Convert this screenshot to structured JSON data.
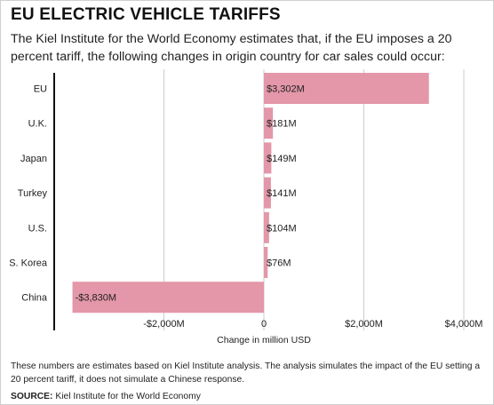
{
  "header": {
    "title": "EU ELECTRIC VEHICLE TARIFFS",
    "subtitle": "The Kiel Institute for the World Economy estimates that, if the EU imposes a 20 percent tariff, the following changes in origin country for car sales could occur:"
  },
  "footer": {
    "note": "These numbers are estimates based on Kiel Institute analysis. The analysis simulates the impact of the EU setting a 20 percent tariff, it does not simulate a Chinese response.",
    "source_label": "SOURCE:",
    "source_text": "Kiel Institute for the World Economy"
  },
  "chart_data": {
    "type": "bar",
    "orientation": "horizontal",
    "categories": [
      "EU",
      "U.K.",
      "Japan",
      "Turkey",
      "U.S.",
      "S. Korea",
      "China"
    ],
    "values": [
      3302,
      181,
      149,
      141,
      104,
      76,
      -3830
    ],
    "data_labels": [
      "$3,302M",
      "$181M",
      "$149M",
      "$141M",
      "$104M",
      "$76M",
      "-$3,830M"
    ],
    "xlabel": "Change in million USD",
    "ylabel": "",
    "xlim": [
      -4000,
      4000
    ],
    "xticks": [
      -2000,
      0,
      2000,
      4000
    ],
    "xtick_labels": [
      "-$2,000M",
      "0",
      "$2,000M",
      "$4,000M"
    ],
    "grid": "vertical",
    "bar_color": "#e397a8",
    "grid_color": "#cccccc"
  }
}
